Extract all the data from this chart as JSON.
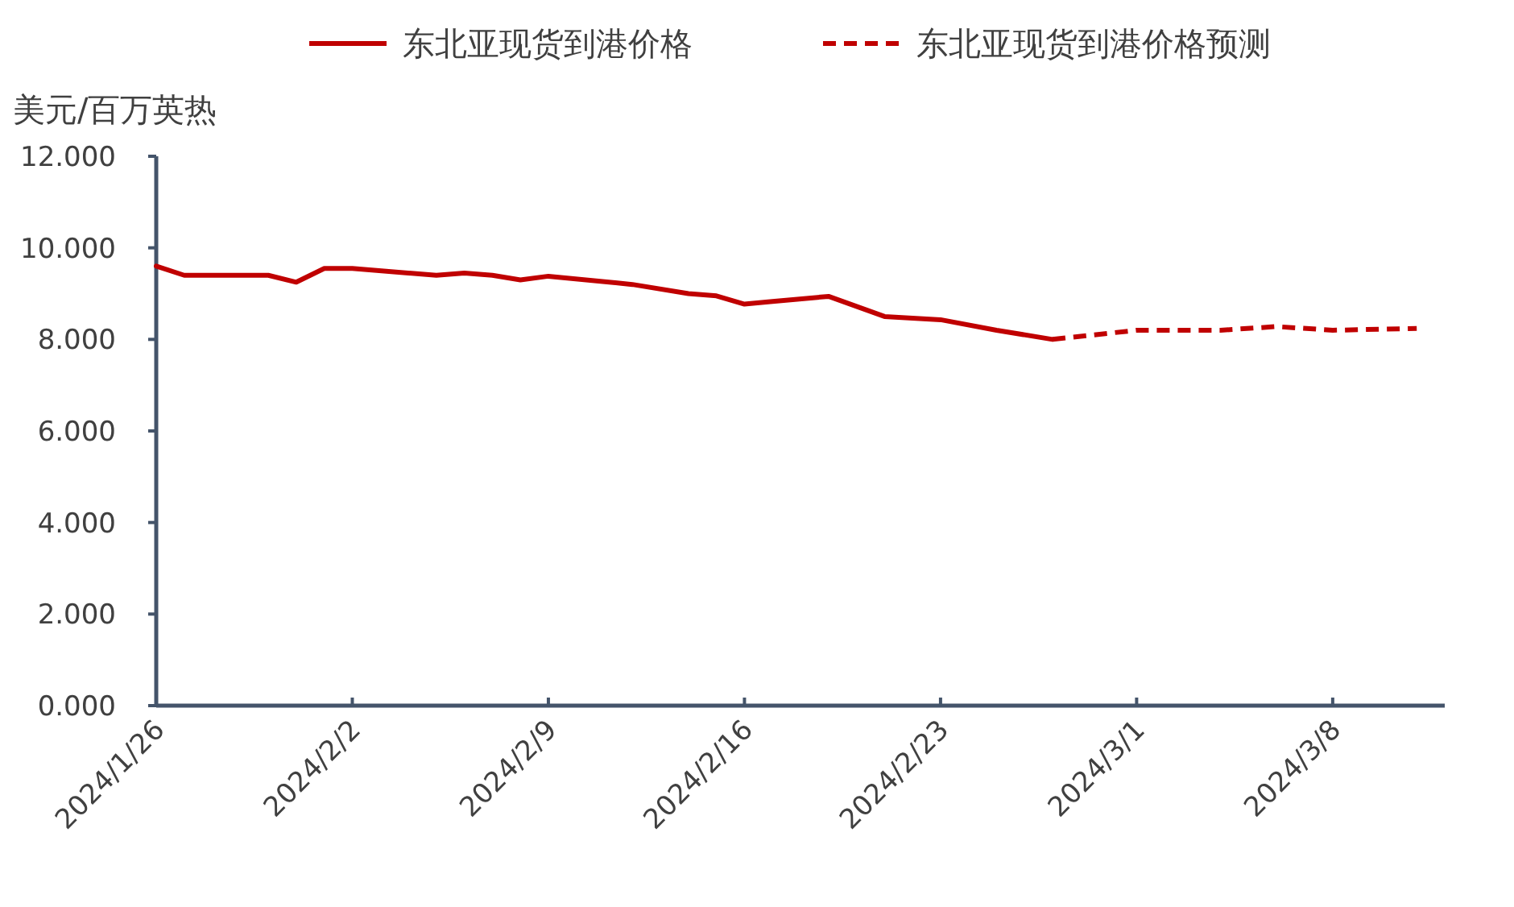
{
  "chart_data": {
    "type": "line",
    "ylabel": "美元/百万英热",
    "legend": "top",
    "grid": false,
    "marker": "none",
    "xlim": [
      "2024-01-26",
      "2024-03-12"
    ],
    "xticks": [
      {
        "value": "2024-01-26",
        "label": "2024/1/26"
      },
      {
        "value": "2024-02-02",
        "label": "2024/2/2"
      },
      {
        "value": "2024-02-09",
        "label": "2024/2/9"
      },
      {
        "value": "2024-02-16",
        "label": "2024/2/16"
      },
      {
        "value": "2024-02-23",
        "label": "2024/2/23"
      },
      {
        "value": "2024-03-01",
        "label": "2024/3/1"
      },
      {
        "value": "2024-03-08",
        "label": "2024/3/8"
      }
    ],
    "ylim": [
      0,
      12
    ],
    "yticks": [
      {
        "value": 0,
        "label": "0.000"
      },
      {
        "value": 2,
        "label": "2.000"
      },
      {
        "value": 4,
        "label": "4.000"
      },
      {
        "value": 6,
        "label": "6.000"
      },
      {
        "value": 8,
        "label": "8.000"
      },
      {
        "value": 10,
        "label": "10.000"
      },
      {
        "value": 12,
        "label": "12.000"
      }
    ],
    "series": [
      {
        "name": "东北亚现货到港价格",
        "color": "#c00000",
        "line_style": "solid",
        "x": [
          "2024-01-26",
          "2024-01-27",
          "2024-01-30",
          "2024-01-31",
          "2024-02-01",
          "2024-02-02",
          "2024-02-05",
          "2024-02-06",
          "2024-02-07",
          "2024-02-08",
          "2024-02-09",
          "2024-02-12",
          "2024-02-14",
          "2024-02-15",
          "2024-02-16",
          "2024-02-17",
          "2024-02-19",
          "2024-02-21",
          "2024-02-23",
          "2024-02-25",
          "2024-02-27"
        ],
        "values": [
          9.6,
          9.4,
          9.4,
          9.25,
          9.55,
          9.55,
          9.4,
          9.45,
          9.4,
          9.3,
          9.38,
          9.2,
          9.0,
          8.95,
          8.77,
          8.83,
          8.94,
          8.5,
          8.43,
          8.2,
          8.0
        ]
      },
      {
        "name": "东北亚现货到港价格预测",
        "color": "#c00000",
        "line_style": "dashed",
        "x": [
          "2024-02-27",
          "2024-03-01",
          "2024-03-04",
          "2024-03-06",
          "2024-03-08",
          "2024-03-11"
        ],
        "values": [
          8.0,
          8.2,
          8.2,
          8.28,
          8.2,
          8.24
        ]
      }
    ]
  }
}
